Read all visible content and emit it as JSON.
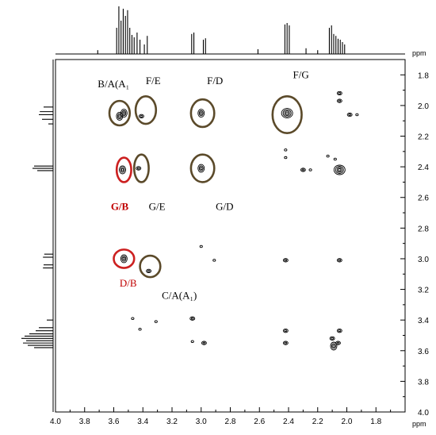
{
  "chart_data": {
    "type": "contour-2d-nmr",
    "x_unit": "ppm",
    "y_unit": "ppm",
    "x_axis": {
      "min": 1.6,
      "max": 4.0,
      "reversed": true,
      "ticks": [
        "4.0",
        "3.8",
        "3.6",
        "3.4",
        "3.2",
        "3.0",
        "2.8",
        "2.6",
        "2.4",
        "2.2",
        "2.0",
        "1.8"
      ]
    },
    "y_axis": {
      "min": 1.7,
      "max": 4.0,
      "reversed": false,
      "ticks": [
        "1.8",
        "2.0",
        "2.2",
        "2.4",
        "2.6",
        "2.8",
        "3.0",
        "3.2",
        "3.4",
        "3.6",
        "3.8",
        "4.0"
      ]
    },
    "grid": false,
    "cross_peaks": [
      {
        "x": 3.56,
        "y": 2.07,
        "kind": "multi"
      },
      {
        "x": 3.53,
        "y": 2.05,
        "kind": "multi"
      },
      {
        "x": 3.41,
        "y": 2.07,
        "kind": "small"
      },
      {
        "x": 3.0,
        "y": 2.05,
        "kind": "multi"
      },
      {
        "x": 2.41,
        "y": 2.05,
        "kind": "big"
      },
      {
        "x": 2.05,
        "y": 1.92,
        "kind": "small"
      },
      {
        "x": 2.05,
        "y": 1.97,
        "kind": "small"
      },
      {
        "x": 1.98,
        "y": 2.06,
        "kind": "small"
      },
      {
        "x": 1.93,
        "y": 2.06,
        "kind": "dot"
      },
      {
        "x": 3.54,
        "y": 2.42,
        "kind": "multi"
      },
      {
        "x": 3.43,
        "y": 2.41,
        "kind": "small"
      },
      {
        "x": 3.0,
        "y": 2.41,
        "kind": "multi"
      },
      {
        "x": 2.42,
        "y": 2.29,
        "kind": "dot"
      },
      {
        "x": 2.42,
        "y": 2.34,
        "kind": "dot"
      },
      {
        "x": 2.3,
        "y": 2.42,
        "kind": "small"
      },
      {
        "x": 2.25,
        "y": 2.42,
        "kind": "dot"
      },
      {
        "x": 2.05,
        "y": 2.42,
        "kind": "big"
      },
      {
        "x": 2.13,
        "y": 2.33,
        "kind": "dot"
      },
      {
        "x": 2.08,
        "y": 2.35,
        "kind": "dot"
      },
      {
        "x": 3.53,
        "y": 3.0,
        "kind": "multi"
      },
      {
        "x": 3.36,
        "y": 3.08,
        "kind": "small"
      },
      {
        "x": 3.0,
        "y": 2.92,
        "kind": "dot"
      },
      {
        "x": 2.91,
        "y": 3.01,
        "kind": "dot"
      },
      {
        "x": 2.42,
        "y": 3.01,
        "kind": "small"
      },
      {
        "x": 2.05,
        "y": 3.01,
        "kind": "small"
      },
      {
        "x": 3.47,
        "y": 3.39,
        "kind": "dot"
      },
      {
        "x": 3.42,
        "y": 3.46,
        "kind": "dot"
      },
      {
        "x": 3.31,
        "y": 3.41,
        "kind": "dot"
      },
      {
        "x": 3.06,
        "y": 3.39,
        "kind": "small"
      },
      {
        "x": 3.06,
        "y": 3.54,
        "kind": "dot"
      },
      {
        "x": 2.98,
        "y": 3.55,
        "kind": "small"
      },
      {
        "x": 2.42,
        "y": 3.47,
        "kind": "small"
      },
      {
        "x": 2.42,
        "y": 3.55,
        "kind": "small"
      },
      {
        "x": 2.05,
        "y": 3.47,
        "kind": "small"
      },
      {
        "x": 2.1,
        "y": 3.52,
        "kind": "small"
      },
      {
        "x": 2.09,
        "y": 3.57,
        "kind": "multi"
      },
      {
        "x": 2.06,
        "y": 3.55,
        "kind": "small"
      }
    ],
    "annotations": [
      {
        "text": "B/A(A₁",
        "x": 3.71,
        "y": 1.86,
        "color": "#000000",
        "bold": false
      },
      {
        "text": "F/E",
        "x": 3.38,
        "y": 1.84,
        "color": "#000000",
        "bold": false
      },
      {
        "text": "F/D",
        "x": 2.96,
        "y": 1.84,
        "color": "#000000",
        "bold": false
      },
      {
        "text": "F/G",
        "x": 2.37,
        "y": 1.8,
        "color": "#000000",
        "bold": false
      },
      {
        "text": "G/B",
        "x": 3.62,
        "y": 2.66,
        "color": "#c00000",
        "bold": true
      },
      {
        "text": "G/E",
        "x": 3.36,
        "y": 2.66,
        "color": "#000000",
        "bold": false
      },
      {
        "text": "G/D",
        "x": 2.9,
        "y": 2.66,
        "color": "#000000",
        "bold": false
      },
      {
        "text": "D/B",
        "x": 3.56,
        "y": 3.16,
        "color": "#c00000",
        "bold": false
      },
      {
        "text": "C/A(A₁)",
        "x": 3.27,
        "y": 3.24,
        "color": "#000000",
        "bold": false
      }
    ],
    "highlight_circles": [
      {
        "x": 3.56,
        "y": 2.05,
        "rx": 0.07,
        "ry": 0.08,
        "color": "#5b4a2a"
      },
      {
        "x": 3.38,
        "y": 2.03,
        "rx": 0.07,
        "ry": 0.09,
        "color": "#5b4a2a"
      },
      {
        "x": 2.99,
        "y": 2.05,
        "rx": 0.08,
        "ry": 0.09,
        "color": "#5b4a2a"
      },
      {
        "x": 2.41,
        "y": 2.06,
        "rx": 0.1,
        "ry": 0.12,
        "color": "#5b4a2a"
      },
      {
        "x": 3.53,
        "y": 2.42,
        "rx": 0.05,
        "ry": 0.08,
        "color": "#cc2020"
      },
      {
        "x": 3.41,
        "y": 2.41,
        "rx": 0.05,
        "ry": 0.09,
        "color": "#5b4a2a"
      },
      {
        "x": 2.99,
        "y": 2.41,
        "rx": 0.08,
        "ry": 0.09,
        "color": "#5b4a2a"
      },
      {
        "x": 3.53,
        "y": 3.0,
        "rx": 0.07,
        "ry": 0.06,
        "color": "#cc2020"
      },
      {
        "x": 3.35,
        "y": 3.05,
        "rx": 0.07,
        "ry": 0.07,
        "color": "#5b4a2a"
      }
    ],
    "top_spectrum_peaks": [
      {
        "x": 3.71,
        "h": 0.08
      },
      {
        "x": 3.58,
        "h": 0.55
      },
      {
        "x": 3.565,
        "h": 1.0
      },
      {
        "x": 3.55,
        "h": 0.7
      },
      {
        "x": 3.535,
        "h": 0.95
      },
      {
        "x": 3.52,
        "h": 0.8
      },
      {
        "x": 3.505,
        "h": 0.92
      },
      {
        "x": 3.49,
        "h": 0.55
      },
      {
        "x": 3.475,
        "h": 0.4
      },
      {
        "x": 3.46,
        "h": 0.35
      },
      {
        "x": 3.44,
        "h": 0.45
      },
      {
        "x": 3.42,
        "h": 0.3
      },
      {
        "x": 3.39,
        "h": 0.2
      },
      {
        "x": 3.37,
        "h": 0.38
      },
      {
        "x": 3.065,
        "h": 0.42
      },
      {
        "x": 3.05,
        "h": 0.45
      },
      {
        "x": 2.985,
        "h": 0.3
      },
      {
        "x": 2.97,
        "h": 0.33
      },
      {
        "x": 2.61,
        "h": 0.1
      },
      {
        "x": 2.425,
        "h": 0.62
      },
      {
        "x": 2.41,
        "h": 0.65
      },
      {
        "x": 2.395,
        "h": 0.6
      },
      {
        "x": 2.28,
        "h": 0.12
      },
      {
        "x": 2.2,
        "h": 0.08
      },
      {
        "x": 2.12,
        "h": 0.55
      },
      {
        "x": 2.105,
        "h": 0.6
      },
      {
        "x": 2.09,
        "h": 0.42
      },
      {
        "x": 2.075,
        "h": 0.38
      },
      {
        "x": 2.06,
        "h": 0.32
      },
      {
        "x": 2.045,
        "h": 0.3
      },
      {
        "x": 2.03,
        "h": 0.25
      },
      {
        "x": 2.015,
        "h": 0.2
      }
    ],
    "left_spectrum_peaks": [
      {
        "y": 2.01,
        "h": 0.3
      },
      {
        "y": 2.04,
        "h": 0.42
      },
      {
        "y": 2.06,
        "h": 0.45
      },
      {
        "y": 2.09,
        "h": 0.35
      },
      {
        "y": 2.12,
        "h": 0.15
      },
      {
        "y": 2.395,
        "h": 0.6
      },
      {
        "y": 2.41,
        "h": 0.65
      },
      {
        "y": 2.425,
        "h": 0.5
      },
      {
        "y": 2.97,
        "h": 0.28
      },
      {
        "y": 2.99,
        "h": 0.32
      },
      {
        "y": 3.04,
        "h": 0.3
      },
      {
        "y": 3.06,
        "h": 0.32
      },
      {
        "y": 3.4,
        "h": 0.2
      },
      {
        "y": 3.45,
        "h": 0.45
      },
      {
        "y": 3.47,
        "h": 0.55
      },
      {
        "y": 3.49,
        "h": 0.75
      },
      {
        "y": 3.505,
        "h": 0.9
      },
      {
        "y": 3.52,
        "h": 1.0
      },
      {
        "y": 3.535,
        "h": 0.85
      },
      {
        "y": 3.55,
        "h": 0.95
      },
      {
        "y": 3.565,
        "h": 0.8
      },
      {
        "y": 3.58,
        "h": 0.6
      }
    ]
  }
}
